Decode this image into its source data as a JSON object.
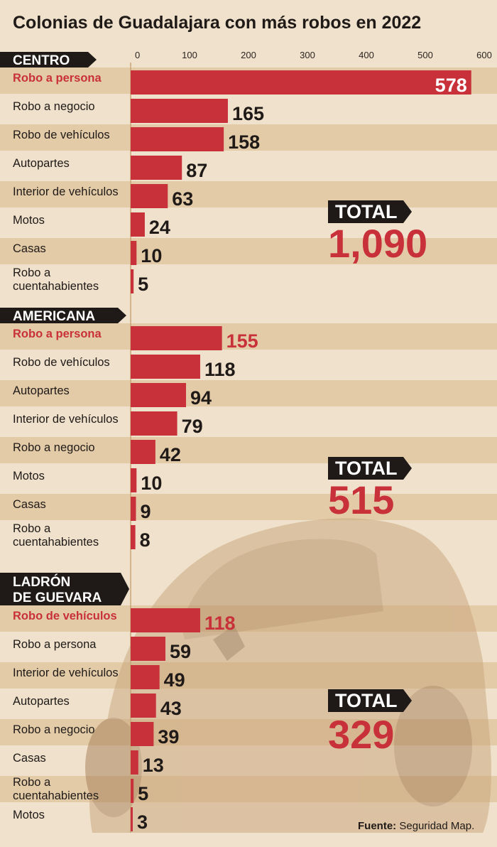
{
  "chart_data": {
    "type": "bar",
    "orientation": "horizontal",
    "title": "Colonias de Guadalajara con más robos en 2022",
    "xlim": [
      0,
      600
    ],
    "x_ticks": [
      0,
      100,
      200,
      300,
      400,
      500,
      600
    ],
    "groups": [
      {
        "name": "CENTRO",
        "total_label": "TOTAL",
        "total": "1,090",
        "categories": [
          "Robo a persona",
          "Robo a negocio",
          "Robo de vehículos",
          "Autopartes",
          "Interior de vehículos",
          "Motos",
          "Casas",
          "Robo a cuentahabientes"
        ],
        "values": [
          578,
          165,
          158,
          87,
          63,
          24,
          10,
          5
        ]
      },
      {
        "name": "AMERICANA",
        "total_label": "TOTAL",
        "total": "515",
        "categories": [
          "Robo a persona",
          "Robo de vehículos",
          "Autopartes",
          "Interior de vehículos",
          "Robo a negocio",
          "Motos",
          "Casas",
          "Robo a cuentahabientes"
        ],
        "values": [
          155,
          118,
          94,
          79,
          42,
          10,
          9,
          8
        ]
      },
      {
        "name": "LADRÓN DE GUEVARA",
        "total_label": "TOTAL",
        "total": "329",
        "categories": [
          "Robo de vehículos",
          "Robo a persona",
          "Interior de vehículos",
          "Autopartes",
          "Robo a negocio",
          "Casas",
          "Robo a cuentahabientes",
          "Motos"
        ],
        "values": [
          118,
          59,
          49,
          43,
          39,
          13,
          5,
          3
        ]
      }
    ],
    "highlight": "first bar of each group",
    "colors": {
      "bar": "#c8303a",
      "highlight_text": "#c8303a",
      "band": "#e3cba8",
      "background": "#efe1cb",
      "label_box": "#1f1a17"
    },
    "source_label": "Fuente:",
    "source": "Seguridad Map."
  }
}
